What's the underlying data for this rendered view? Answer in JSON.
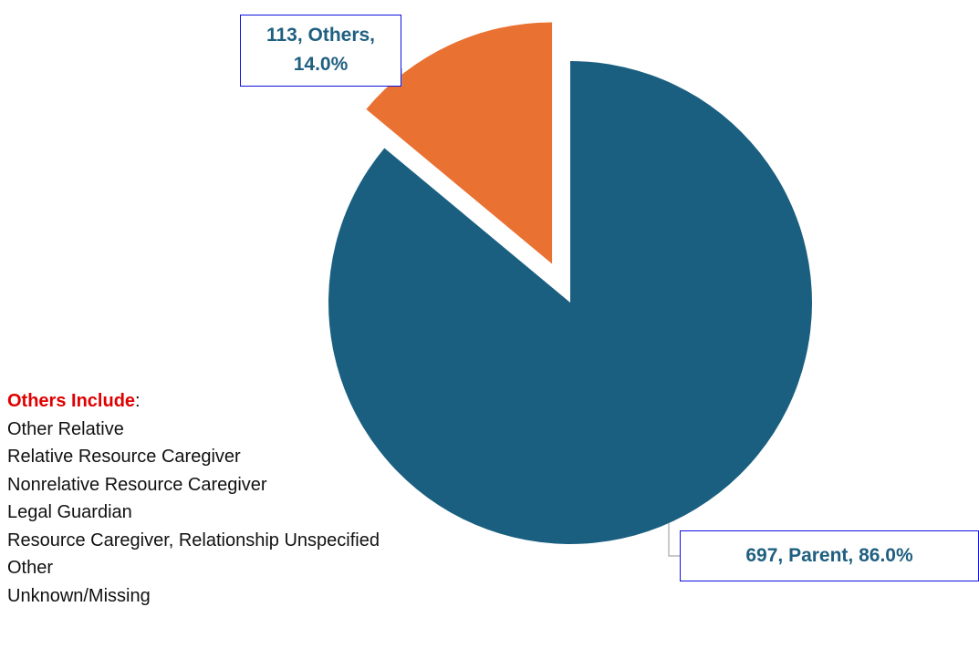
{
  "chart_data": {
    "type": "pie",
    "values": [
      697,
      113
    ],
    "value_labels": [
      "697, Parent, 86.0%",
      "113, Others, 14.0%"
    ],
    "colors": [
      "#1a5f80",
      "#e97132"
    ],
    "annotation": {
      "title": "Others Include",
      "suffix": ":",
      "items": [
        "Other Relative",
        "Relative Resource Caregiver",
        "Nonrelative Resource Caregiver",
        "Legal Guardian",
        "Resource Caregiver, Relationship Unspecified",
        "Other",
        "Unknown/Missing"
      ]
    }
  }
}
